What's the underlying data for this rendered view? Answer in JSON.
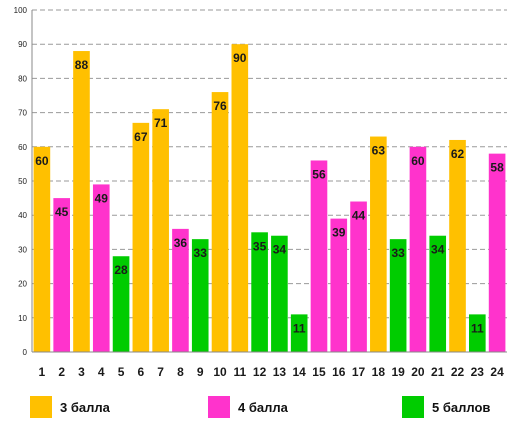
{
  "chart_data": {
    "type": "bar",
    "categories": [
      "1",
      "2",
      "3",
      "4",
      "5",
      "6",
      "7",
      "8",
      "9",
      "10",
      "11",
      "12",
      "13",
      "14",
      "15",
      "16",
      "17",
      "18",
      "19",
      "20",
      "21",
      "22",
      "23",
      "24"
    ],
    "values": [
      60,
      45,
      88,
      49,
      28,
      67,
      71,
      36,
      33,
      76,
      90,
      35,
      34,
      11,
      56,
      39,
      44,
      63,
      33,
      60,
      34,
      62,
      11,
      58
    ],
    "groups": [
      "3 балла",
      "4 балла",
      "3 балла",
      "4 балла",
      "5 баллов",
      "3 балла",
      "3 балла",
      "4 балла",
      "5 баллов",
      "3 балла",
      "3 балла",
      "5 баллов",
      "5 баллов",
      "5 баллов",
      "4 балла",
      "4 балла",
      "4 балла",
      "3 балла",
      "5 баллов",
      "4 балла",
      "5 баллов",
      "3 балла",
      "5 баллов",
      "4 балла"
    ],
    "yticks": [
      "0",
      "10",
      "20",
      "30",
      "40",
      "50",
      "60",
      "70",
      "80",
      "90",
      "100"
    ],
    "ylim": [
      0,
      100
    ],
    "grid": true,
    "legend_placement": "bottom",
    "title": "",
    "xlabel": "",
    "ylabel": "",
    "legend": [
      {
        "name": "3 балла",
        "color": "#FFC000"
      },
      {
        "name": "4 балла",
        "color": "#FF33CC"
      },
      {
        "name": "5 баллов",
        "color": "#00CC00"
      }
    ]
  }
}
